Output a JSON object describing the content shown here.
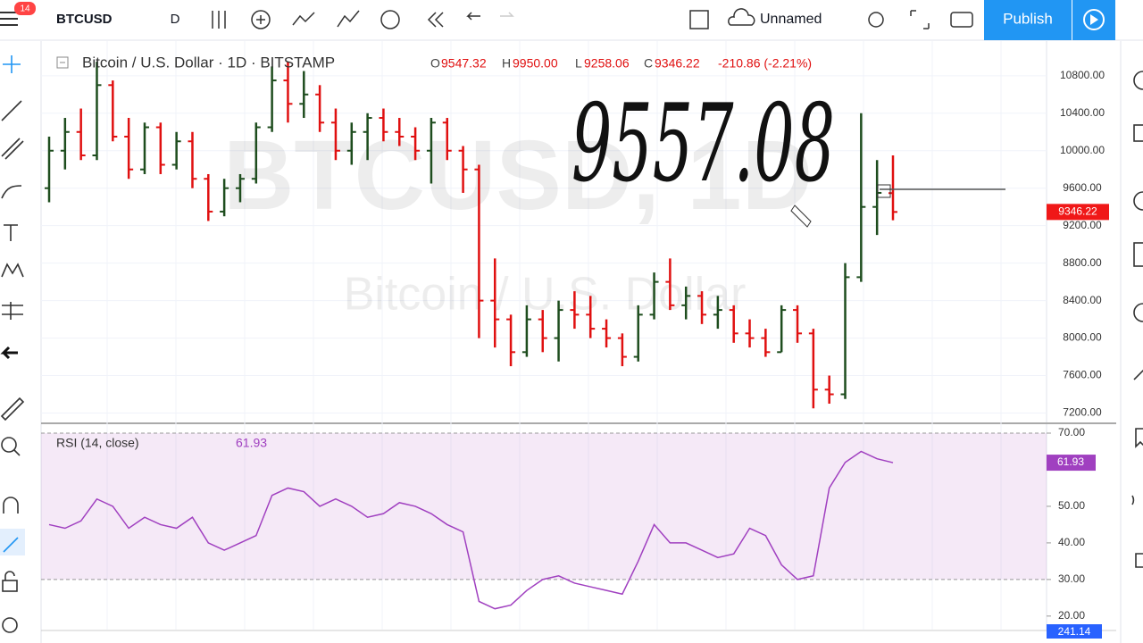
{
  "toolbar": {
    "badge": "14",
    "symbol": "BTCUSD",
    "interval": "D",
    "layout_name": "Unnamed",
    "publish": "Publish"
  },
  "price_pane": {
    "legend": {
      "title": "Bitcoin / U.S. Dollar · 1D · BITSTAMP",
      "open_label": "O",
      "open": "9547.32",
      "high_label": "H",
      "high": "9950.00",
      "low_label": "L",
      "low": "9258.06",
      "close_label": "C",
      "close": "9346.22",
      "change": "-210.86 (-2.21%)"
    },
    "watermark": [
      "BTCUSD, 1D",
      "Bitcoin / U.S. Dollar"
    ],
    "annotation": "9557.08",
    "last_price": {
      "value": 9346.22,
      "label": "9346.22"
    },
    "ylim": [
      7100,
      11170
    ],
    "yticks": [
      {
        "value": 10800,
        "label": "10800.00"
      },
      {
        "value": 10400,
        "label": "10400.00"
      },
      {
        "value": 10000,
        "label": "10000.00"
      },
      {
        "value": 9600,
        "label": "9600.00"
      },
      {
        "value": 9200,
        "label": "9200.00"
      },
      {
        "value": 8800,
        "label": "8800.00"
      },
      {
        "value": 8400,
        "label": "8400.00"
      },
      {
        "value": 8000,
        "label": "8000.00"
      },
      {
        "value": 7600,
        "label": "7600.00"
      },
      {
        "value": 7200,
        "label": "7200.00"
      }
    ],
    "up_color": "#1e4d1e",
    "down_color": "#e01010",
    "ohlc": [
      [
        9600,
        10150,
        9450,
        10000
      ],
      [
        10000,
        10350,
        9800,
        10200
      ],
      [
        10200,
        10450,
        9900,
        9950
      ],
      [
        9950,
        10950,
        9900,
        10700
      ],
      [
        10700,
        10750,
        10100,
        10150
      ],
      [
        10150,
        10350,
        9700,
        9800
      ],
      [
        9800,
        10300,
        9750,
        10250
      ],
      [
        10250,
        10300,
        9750,
        9850
      ],
      [
        9850,
        10200,
        9800,
        10100
      ],
      [
        10100,
        10200,
        9600,
        9700
      ],
      [
        9700,
        9750,
        9250,
        9350
      ],
      [
        9350,
        9700,
        9300,
        9600
      ],
      [
        9600,
        9750,
        9450,
        9700
      ],
      [
        9700,
        10300,
        9650,
        10250
      ],
      [
        10250,
        10900,
        10200,
        10750
      ],
      [
        10750,
        10950,
        10300,
        10500
      ],
      [
        10500,
        10850,
        10350,
        10600
      ],
      [
        10600,
        10700,
        10200,
        10300
      ],
      [
        10300,
        10450,
        9900,
        10000
      ],
      [
        10000,
        10300,
        9850,
        10200
      ],
      [
        10200,
        10400,
        9900,
        10350
      ],
      [
        10350,
        10450,
        10100,
        10200
      ],
      [
        10200,
        10350,
        10050,
        10150
      ],
      [
        10150,
        10250,
        9900,
        10000
      ],
      [
        10000,
        10350,
        9650,
        10300
      ],
      [
        10300,
        10350,
        9900,
        10000
      ],
      [
        10000,
        10050,
        9550,
        9800
      ],
      [
        9800,
        9850,
        8000,
        8400
      ],
      [
        8400,
        8850,
        7900,
        8200
      ],
      [
        8200,
        8250,
        7700,
        7850
      ],
      [
        7850,
        8350,
        7800,
        8200
      ],
      [
        8200,
        8300,
        7850,
        8000
      ],
      [
        8000,
        8400,
        7750,
        8300
      ],
      [
        8300,
        8500,
        8100,
        8250
      ],
      [
        8250,
        8450,
        8000,
        8100
      ],
      [
        8100,
        8200,
        7900,
        8000
      ],
      [
        8000,
        8050,
        7700,
        7800
      ],
      [
        7800,
        8350,
        7750,
        8250
      ],
      [
        8250,
        8700,
        8200,
        8600
      ],
      [
        8600,
        8850,
        8300,
        8350
      ],
      [
        8350,
        8550,
        8200,
        8450
      ],
      [
        8450,
        8500,
        8150,
        8250
      ],
      [
        8250,
        8450,
        8100,
        8300
      ],
      [
        8300,
        8350,
        7950,
        8050
      ],
      [
        8050,
        8200,
        7900,
        8000
      ],
      [
        8000,
        8100,
        7800,
        7850
      ],
      [
        7850,
        8350,
        7850,
        8300
      ],
      [
        8300,
        8350,
        7950,
        8050
      ],
      [
        8050,
        8100,
        7250,
        7450
      ],
      [
        7450,
        7600,
        7300,
        7400
      ],
      [
        7400,
        8800,
        7350,
        8650
      ],
      [
        8650,
        10400,
        8600,
        9400
      ],
      [
        9400,
        9900,
        9100,
        9550
      ],
      [
        9547.32,
        9950,
        9258.06,
        9346.22
      ]
    ]
  },
  "rsi_pane": {
    "legend": "RSI (14, close)",
    "value_label": "61.93",
    "color": "#a040c0",
    "band": [
      30,
      70
    ],
    "ylim": [
      16.3,
      72.2
    ],
    "yticks": [
      {
        "value": 70,
        "label": "70.00"
      },
      {
        "value": 50,
        "label": "50.00"
      },
      {
        "value": 40,
        "label": "40.00"
      },
      {
        "value": 30,
        "label": "30.00"
      },
      {
        "value": 20,
        "label": "20.00"
      }
    ],
    "values": [
      45,
      44,
      46,
      52,
      50,
      44,
      47,
      45,
      44,
      47,
      40,
      38,
      40,
      42,
      53,
      55,
      54,
      50,
      52,
      50,
      47,
      48,
      51,
      50,
      48,
      45,
      43,
      24,
      22,
      23,
      27,
      30,
      31,
      29,
      28,
      27,
      26,
      35,
      45,
      40,
      40,
      38,
      36,
      37,
      44,
      42,
      34,
      30,
      31,
      55,
      62,
      65,
      63,
      61.93
    ],
    "last": {
      "value": 61.93,
      "label": "61.93"
    }
  },
  "bottom_label": "241.14"
}
